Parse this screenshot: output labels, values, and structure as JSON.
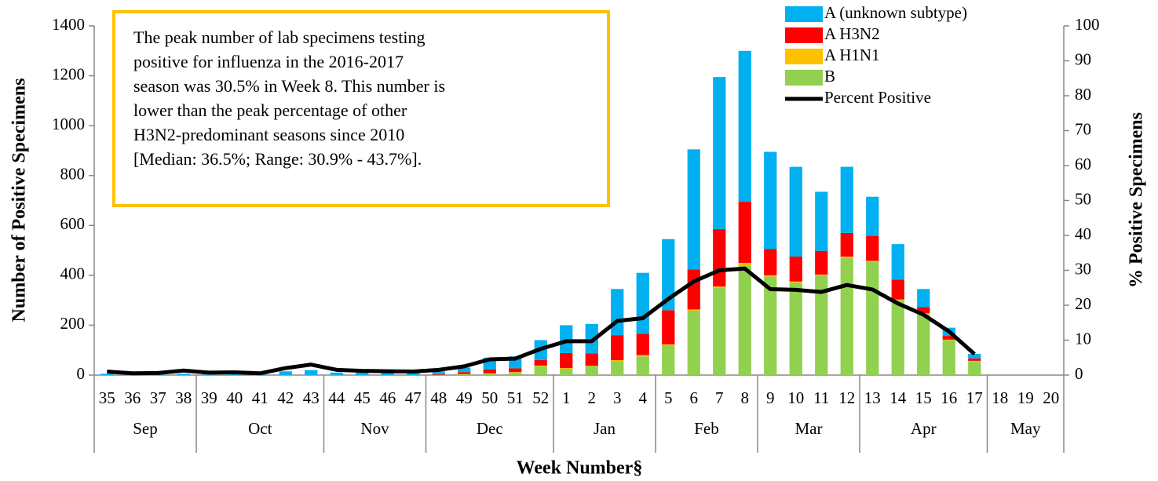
{
  "chart_data": {
    "type": "bar",
    "stacked": true,
    "annotation": [
      "The peak number of lab specimens testing",
      "positive for influenza in the 2016-2017",
      "season was 30.5% in Week 8. This number is",
      "lower than the peak percentage of other",
      "H3N2-predominant seasons since 2010",
      "[Median: 36.5%; Range: 30.9% - 43.7%]."
    ],
    "x_label": "Week Number§",
    "y_label": "Number of Positive Specimens",
    "y2_label": "% Positive Specimens",
    "categories": [
      "35",
      "36",
      "37",
      "38",
      "39",
      "40",
      "41",
      "42",
      "43",
      "44",
      "45",
      "46",
      "47",
      "48",
      "49",
      "50",
      "51",
      "52",
      "1",
      "2",
      "3",
      "4",
      "5",
      "6",
      "7",
      "8",
      "9",
      "10",
      "11",
      "12",
      "13",
      "14",
      "15",
      "16",
      "17",
      "18",
      "19",
      "20"
    ],
    "x_groups": [
      {
        "label": "Sep",
        "span": 4
      },
      {
        "label": "Oct",
        "span": 5
      },
      {
        "label": "Nov",
        "span": 4
      },
      {
        "label": "Dec",
        "span": 5
      },
      {
        "label": "Jan",
        "span": 4
      },
      {
        "label": "Feb",
        "span": 4
      },
      {
        "label": "Mar",
        "span": 4
      },
      {
        "label": "Apr",
        "span": 5
      },
      {
        "label": "May",
        "span": 3
      }
    ],
    "series": [
      {
        "name": "A (unknown subtype)",
        "type": "bar",
        "color": "#00B0F0",
        "values": [
          5,
          3,
          3,
          5,
          5,
          5,
          5,
          15,
          20,
          10,
          10,
          10,
          10,
          11,
          18,
          48,
          48,
          80,
          112,
          118,
          185,
          245,
          285,
          482,
          610,
          605,
          390,
          360,
          237,
          265,
          157,
          142,
          72,
          33,
          18,
          0,
          0,
          0
        ]
      },
      {
        "name": "A H3N2",
        "type": "bar",
        "color": "#FF0000",
        "values": [
          0,
          0,
          0,
          0,
          0,
          0,
          0,
          0,
          0,
          0,
          0,
          0,
          0,
          3,
          8,
          15,
          15,
          22,
          60,
          50,
          100,
          85,
          137,
          160,
          230,
          245,
          105,
          100,
          95,
          95,
          100,
          80,
          25,
          15,
          10,
          0,
          0,
          0
        ]
      },
      {
        "name": "A H1N1",
        "type": "bar",
        "color": "#FFC000",
        "values": [
          0,
          0,
          0,
          0,
          0,
          0,
          0,
          0,
          0,
          0,
          0,
          0,
          0,
          0,
          1,
          2,
          2,
          3,
          3,
          2,
          5,
          5,
          3,
          5,
          5,
          10,
          5,
          5,
          3,
          5,
          3,
          3,
          3,
          2,
          2,
          0,
          0,
          0
        ]
      },
      {
        "name": "B",
        "type": "bar",
        "color": "#92D050",
        "values": [
          0,
          0,
          0,
          0,
          0,
          0,
          0,
          0,
          0,
          0,
          0,
          0,
          0,
          1,
          3,
          5,
          10,
          35,
          25,
          35,
          55,
          75,
          120,
          258,
          350,
          440,
          395,
          370,
          400,
          470,
          455,
          300,
          245,
          140,
          55,
          0,
          0,
          0
        ]
      },
      {
        "name": "Percent Positive",
        "type": "line",
        "axis": "y2",
        "color": "#000000",
        "values": [
          1,
          0.5,
          0.6,
          1.3,
          0.7,
          0.8,
          0.5,
          2,
          3,
          1.5,
          1.2,
          1.1,
          1,
          1.5,
          2.5,
          4.5,
          4.7,
          7.5,
          9.7,
          9.7,
          15.5,
          16.3,
          21.8,
          26.8,
          30,
          30.5,
          24.6,
          24.4,
          23.8,
          25.8,
          24.5,
          20.5,
          17.3,
          12.5,
          6,
          null,
          null,
          null
        ]
      }
    ],
    "ylim": [
      0,
      1400
    ],
    "yticks": [
      0,
      200,
      400,
      600,
      800,
      1000,
      1200,
      1400
    ],
    "y2lim": [
      0,
      100
    ],
    "y2ticks": [
      0,
      10,
      20,
      30,
      40,
      50,
      60,
      70,
      80,
      90,
      100
    ],
    "legend": "top-right"
  }
}
